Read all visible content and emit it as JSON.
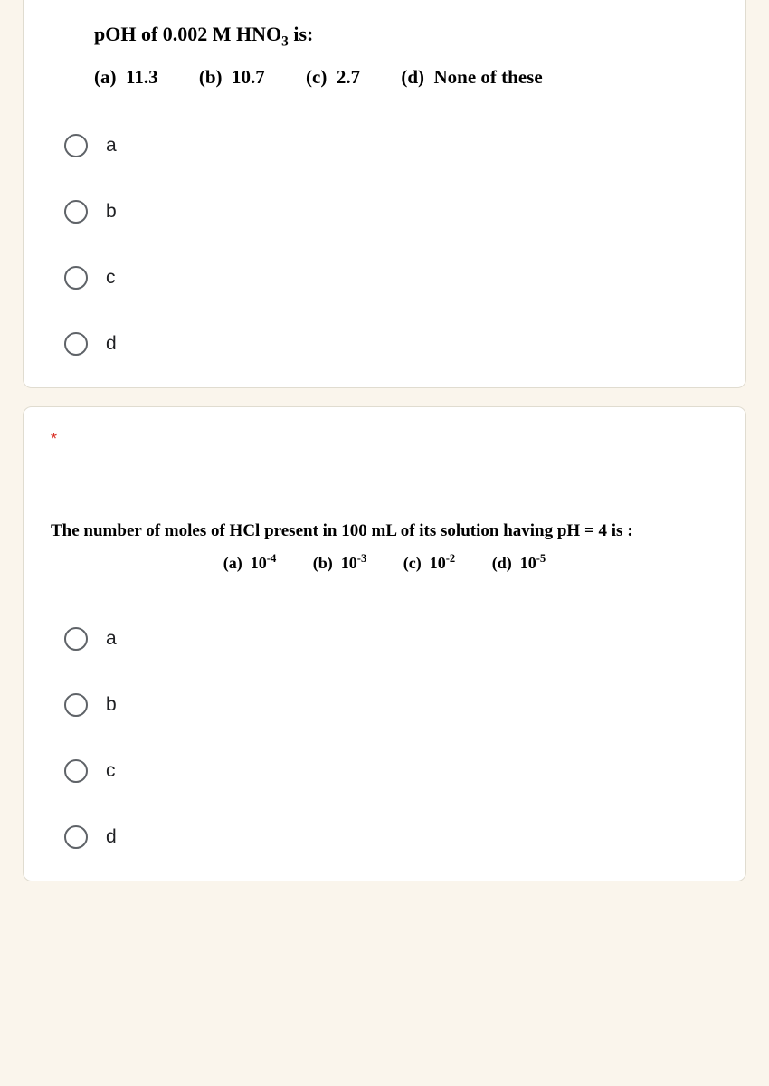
{
  "questions": [
    {
      "question_prefix": "pOH of 0.002 M HNO",
      "question_sub": "3",
      "question_suffix": " is:",
      "inline_choices": [
        {
          "letter": "(a)",
          "value": "11.3"
        },
        {
          "letter": "(b)",
          "value": "10.7"
        },
        {
          "letter": "(c)",
          "value": "2.7"
        },
        {
          "letter": "(d)",
          "value": "None of these"
        }
      ],
      "options": [
        "a",
        "b",
        "c",
        "d"
      ]
    },
    {
      "required": "*",
      "question_text": "The number of moles of HCl present in 100 mL of its solution having  pH = 4 is :",
      "inline_choices": [
        {
          "letter": "(a)",
          "base": "10",
          "exp": "-4"
        },
        {
          "letter": "(b)",
          "base": "10",
          "exp": "-3"
        },
        {
          "letter": "(c)",
          "base": "10",
          "exp": "-2"
        },
        {
          "letter": "(d)",
          "base": "10",
          "exp": "-5"
        }
      ],
      "options": [
        "a",
        "b",
        "c",
        "d"
      ]
    }
  ],
  "colors": {
    "background": "#faf5ec",
    "card_bg": "#ffffff",
    "card_border": "#e0dcd0",
    "text": "#000000",
    "radio_border": "#5f6368",
    "radio_label": "#202124",
    "required": "#d93025"
  },
  "typography": {
    "question_font": "Times New Roman",
    "question_size": 22,
    "radio_font": "Arial",
    "radio_size": 21
  }
}
